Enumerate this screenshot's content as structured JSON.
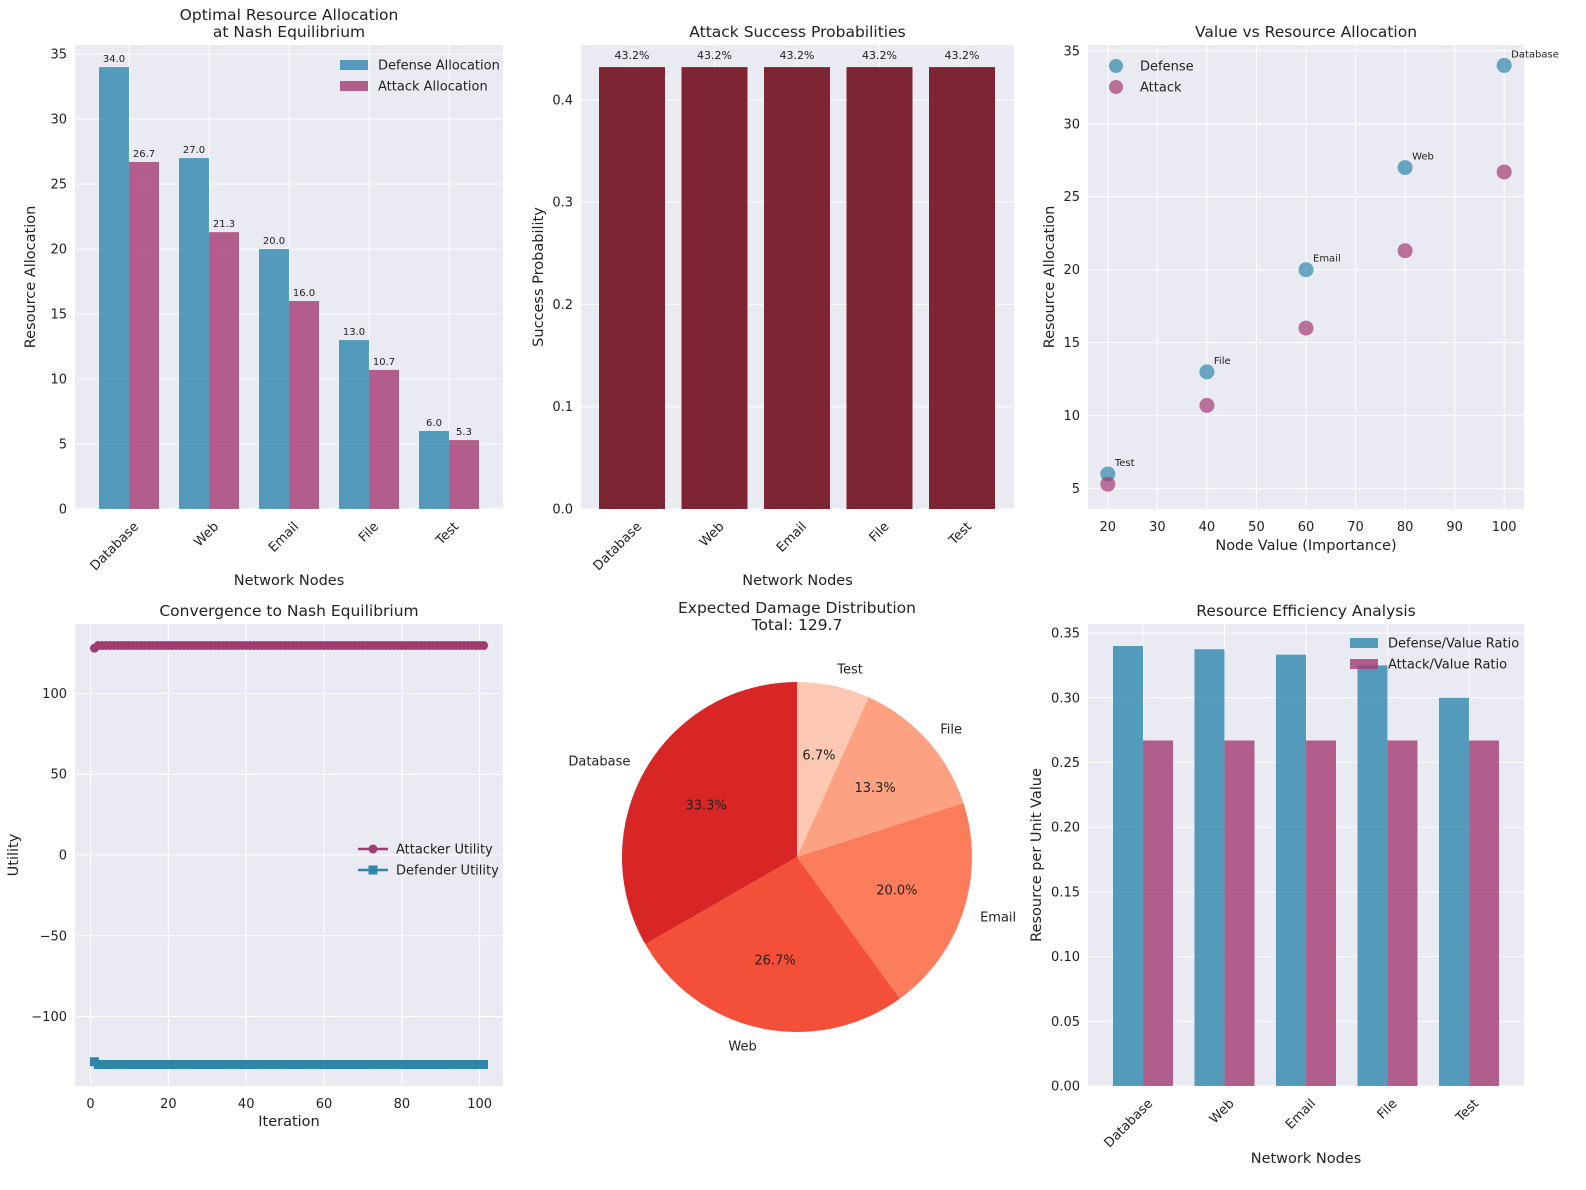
{
  "colors": {
    "defense": "#2E86AB",
    "attack": "#A23B72",
    "success": "#7D2533",
    "pie": [
      "#D82525",
      "#F44F39",
      "#FC7D5C",
      "#FCA282",
      "#FCC8B2"
    ],
    "plot_bg": "#EAEAF2",
    "grid": "#FFFFFF"
  },
  "chart_data": [
    {
      "type": "bar",
      "title": "Optimal Resource Allocation\nat Nash Equilibrium",
      "xlabel": "Network Nodes",
      "ylabel": "Resource Allocation",
      "categories": [
        "Database",
        "Web",
        "Email",
        "File",
        "Test"
      ],
      "series": [
        {
          "name": "Defense Allocation",
          "values": [
            34.0,
            27.0,
            20.0,
            13.0,
            6.0
          ],
          "labels": [
            "34.0",
            "27.0",
            "20.0",
            "13.0",
            "6.0"
          ]
        },
        {
          "name": "Attack Allocation",
          "values": [
            26.7,
            21.3,
            16.0,
            10.7,
            5.3
          ],
          "labels": [
            "26.7",
            "21.3",
            "16.0",
            "10.7",
            "5.3"
          ]
        }
      ],
      "ylim": [
        0,
        35.7
      ],
      "yticks": [
        0,
        5,
        10,
        15,
        20,
        25,
        30,
        35
      ],
      "legend": "top-right",
      "grid": true
    },
    {
      "type": "bar",
      "title": "Attack Success Probabilities",
      "xlabel": "Network Nodes",
      "ylabel": "Success Probability",
      "categories": [
        "Database",
        "Web",
        "Email",
        "File",
        "Test"
      ],
      "values": [
        0.432,
        0.432,
        0.432,
        0.432,
        0.432
      ],
      "labels": [
        "43.2%",
        "43.2%",
        "43.2%",
        "43.2%",
        "43.2%"
      ],
      "ylim": [
        0,
        0.4536
      ],
      "yticks": [
        0.0,
        0.1,
        0.2,
        0.3,
        0.4
      ],
      "ytick_labels": [
        "0.0",
        "0.1",
        "0.2",
        "0.3",
        "0.4"
      ],
      "grid": true
    },
    {
      "type": "scatter",
      "title": "Value vs Resource Allocation",
      "xlabel": "Node Value (Importance)",
      "ylabel": "Resource Allocation",
      "series": [
        {
          "name": "Defense",
          "points": [
            [
              100,
              34.0
            ],
            [
              80,
              27.0
            ],
            [
              60,
              20.0
            ],
            [
              40,
              13.0
            ],
            [
              20,
              6.0
            ]
          ]
        },
        {
          "name": "Attack",
          "points": [
            [
              100,
              26.7
            ],
            [
              80,
              21.3
            ],
            [
              60,
              16.0
            ],
            [
              40,
              10.7
            ],
            [
              20,
              5.3
            ]
          ]
        }
      ],
      "annotations": [
        {
          "text": "Database",
          "x": 100,
          "y": 34.0
        },
        {
          "text": "Web",
          "x": 80,
          "y": 27.0
        },
        {
          "text": "Email",
          "x": 60,
          "y": 20.0
        },
        {
          "text": "File",
          "x": 40,
          "y": 13.0
        },
        {
          "text": "Test",
          "x": 20,
          "y": 6.0
        }
      ],
      "xlim": [
        16,
        104
      ],
      "ylim": [
        3.6,
        35.4
      ],
      "xticks": [
        20,
        30,
        40,
        50,
        60,
        70,
        80,
        90,
        100
      ],
      "yticks": [
        5,
        10,
        15,
        20,
        25,
        30,
        35
      ],
      "legend": "top-left",
      "grid": true
    },
    {
      "type": "line",
      "title": "Convergence to Nash Equilibrium",
      "xlabel": "Iteration",
      "ylabel": "Utility",
      "series": [
        {
          "name": "Attacker Utility",
          "first": [
            1,
            128
          ],
          "steady": 129.7,
          "x_range": [
            2,
            101
          ]
        },
        {
          "name": "Defender Utility",
          "first": [
            1,
            -128
          ],
          "steady": -129.7,
          "x_range": [
            2,
            101
          ]
        }
      ],
      "xlim": [
        -4,
        106
      ],
      "ylim": [
        -143,
        143
      ],
      "xticks": [
        0,
        20,
        40,
        60,
        80,
        100
      ],
      "yticks": [
        -100,
        -50,
        0,
        50,
        100
      ],
      "ytick_labels": [
        "−100",
        "−50",
        "0",
        "50",
        "100"
      ],
      "legend": "center-right",
      "grid": true
    },
    {
      "type": "pie",
      "title": "Expected Damage Distribution\nTotal: 129.7",
      "labels": [
        "Database",
        "Web",
        "Email",
        "File",
        "Test"
      ],
      "values": [
        33.3,
        26.7,
        20.0,
        13.3,
        6.7
      ],
      "pct_labels": [
        "33.3%",
        "26.7%",
        "20.0%",
        "13.3%",
        "6.7%"
      ]
    },
    {
      "type": "bar",
      "title": "Resource Efficiency Analysis",
      "xlabel": "Network Nodes",
      "ylabel": "Resource per Unit Value",
      "categories": [
        "Database",
        "Web",
        "Email",
        "File",
        "Test"
      ],
      "series": [
        {
          "name": "Defense/Value Ratio",
          "values": [
            0.34,
            0.3375,
            0.3333,
            0.325,
            0.3
          ]
        },
        {
          "name": "Attack/Value Ratio",
          "values": [
            0.267,
            0.267,
            0.267,
            0.267,
            0.267
          ]
        }
      ],
      "ylim": [
        0,
        0.357
      ],
      "yticks": [
        0.0,
        0.05,
        0.1,
        0.15,
        0.2,
        0.25,
        0.3,
        0.35
      ],
      "ytick_labels": [
        "0.00",
        "0.05",
        "0.10",
        "0.15",
        "0.20",
        "0.25",
        "0.30",
        "0.35"
      ],
      "legend": "top-right",
      "grid": true
    }
  ]
}
